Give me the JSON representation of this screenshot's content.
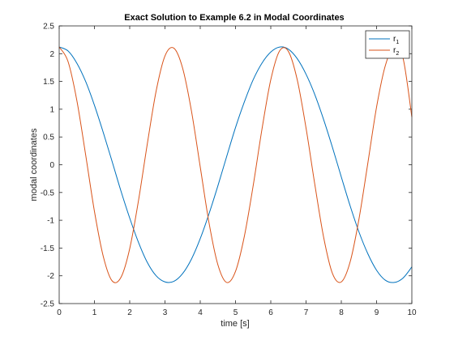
{
  "chart_data": {
    "type": "line",
    "title": "Exact Solution to Example 6.2 in Modal Coordinates",
    "xlabel": "time [s]",
    "ylabel": "modal coordinates",
    "xlim": [
      0,
      10
    ],
    "ylim": [
      -2.5,
      2.5
    ],
    "xticks": [
      0,
      1,
      2,
      3,
      4,
      5,
      6,
      7,
      8,
      9,
      10
    ],
    "xtick_labels": [
      "0",
      "1",
      "2",
      "3",
      "4",
      "5",
      "6",
      "7",
      "8",
      "9",
      "10"
    ],
    "yticks": [
      -2.5,
      -2,
      -1.5,
      -1,
      -0.5,
      0,
      0.5,
      1,
      1.5,
      2,
      2.5
    ],
    "ytick_labels": [
      "-2.5",
      "-2",
      "-1.5",
      "-1",
      "-0.5",
      "0",
      "0.5",
      "1",
      "1.5",
      "2",
      "2.5"
    ],
    "grid": false,
    "legend_position": "top-right",
    "series": [
      {
        "name": "r",
        "subscript": "1",
        "color": "#0072BD",
        "x": [
          0,
          0.25,
          0.5,
          0.75,
          1,
          1.25,
          1.5,
          1.75,
          2,
          2.25,
          2.5,
          2.75,
          3,
          3.25,
          3.5,
          3.75,
          4,
          4.25,
          4.5,
          4.75,
          5,
          5.25,
          5.5,
          5.75,
          6,
          6.25,
          6.5,
          6.75,
          7,
          7.25,
          7.5,
          7.75,
          8,
          8.25,
          8.5,
          8.75,
          9,
          9.25,
          9.5,
          9.75,
          10
        ],
        "y": [
          2.12,
          2.05,
          1.83,
          1.5,
          1.07,
          0.58,
          0.06,
          -0.47,
          -0.96,
          -1.4,
          -1.76,
          -2.0,
          -2.11,
          -2.1,
          -1.96,
          -1.7,
          -1.33,
          -0.88,
          -0.38,
          0.15,
          0.67,
          1.13,
          1.53,
          1.83,
          2.03,
          2.12,
          2.08,
          1.91,
          1.63,
          1.26,
          0.81,
          0.31,
          -0.22,
          -0.74,
          -1.21,
          -1.6,
          -1.9,
          -2.08,
          -2.12,
          -2.04,
          -1.84
        ]
      },
      {
        "name": "r",
        "subscript": "2",
        "color": "#D95319",
        "x": [
          0,
          0.25,
          0.5,
          0.75,
          1,
          1.25,
          1.5,
          1.75,
          2,
          2.25,
          2.5,
          2.75,
          3,
          3.25,
          3.5,
          3.75,
          4,
          4.25,
          4.5,
          4.75,
          5,
          5.25,
          5.5,
          5.75,
          6,
          6.25,
          6.5,
          6.75,
          7,
          7.25,
          7.5,
          7.75,
          8,
          8.25,
          8.5,
          8.75,
          9,
          9.25,
          9.5,
          9.75,
          10
        ],
        "y": [
          2.12,
          1.86,
          1.16,
          0.18,
          -0.84,
          -1.65,
          -2.09,
          -2.03,
          -1.51,
          -0.64,
          0.38,
          1.33,
          1.96,
          2.1,
          1.74,
          0.97,
          -0.04,
          -1.05,
          -1.8,
          -2.12,
          -1.92,
          -1.29,
          -0.38,
          0.64,
          1.53,
          2.05,
          2.04,
          1.53,
          0.66,
          -0.36,
          -1.31,
          -1.96,
          -2.11,
          -1.75,
          -0.98,
          0.02,
          1.04,
          1.79,
          2.12,
          1.92,
          0.86
        ]
      }
    ]
  }
}
